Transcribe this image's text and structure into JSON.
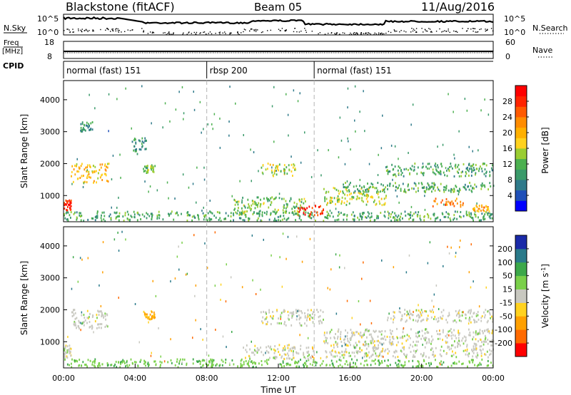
{
  "header": {
    "station": "Blackstone (fitACF)",
    "beam": "Beam 05",
    "date": "11/Aug/2016"
  },
  "top_panels": {
    "nsky_label": "N.Sky",
    "nsky_ticks": [
      "10^5",
      "10^0"
    ],
    "nsearch_label": "N.Search",
    "nsearch_ticks": [
      "10^5",
      "10^0"
    ],
    "freq_label": "Freq",
    "freq_unit": "[MHz]",
    "freq_ticks": [
      "18",
      "8"
    ],
    "nave_label": "Nave",
    "nave_ticks": [
      "60",
      "0"
    ],
    "cpid_label": "CPID",
    "cpid_segments": [
      {
        "label": "normal (fast) 151",
        "start_hour": 0,
        "end_hour": 8
      },
      {
        "label": "rbsp 200",
        "start_hour": 8,
        "end_hour": 14
      },
      {
        "label": "normal (fast) 151",
        "start_hour": 14,
        "end_hour": 24
      }
    ]
  },
  "x_axis": {
    "label": "Time UT",
    "ticks": [
      "00:00",
      "04:00",
      "08:00",
      "12:00",
      "16:00",
      "20:00",
      "00:00"
    ]
  },
  "y_axis": {
    "label": "Slant Range [km]",
    "ticks": [
      "1000",
      "2000",
      "3000",
      "4000"
    ]
  },
  "power_colorbar": {
    "label": "Power [dB]",
    "ticks": [
      "4",
      "8",
      "12",
      "16",
      "20",
      "24",
      "28"
    ],
    "colors": [
      "#0000ff",
      "#1f4fb8",
      "#2f7a8a",
      "#3a9a6a",
      "#4cb050",
      "#9acd32",
      "#ffd21f",
      "#ffb000",
      "#ff8c00",
      "#ff5a00",
      "#ff2400",
      "#ff0000"
    ]
  },
  "velocity_colorbar": {
    "label": "Velocity [m s^-1]",
    "ticks": [
      "200",
      "100",
      "50",
      "15",
      "-15",
      "-50",
      "-100",
      "-200"
    ],
    "colors": [
      "#1a2aa8",
      "#2a7a8a",
      "#3ca84a",
      "#7ad04a",
      "#c8c8c0",
      "#ffd21f",
      "#ffa000",
      "#ff6a00",
      "#ff0000"
    ]
  },
  "chart_data": {
    "type": "heatmap",
    "title": "Blackstone (fitACF) Beam 05 11/Aug/2016",
    "xlabel": "Time UT",
    "ylabel": "Slant Range [km]",
    "xlim": [
      0,
      24
    ],
    "ylim": [
      180,
      4600
    ],
    "cpid_change_hours": [
      8,
      14
    ],
    "power_features": [
      {
        "t_range": [
          0,
          0.4
        ],
        "r_range": [
          500,
          900
        ],
        "power_db": 28
      },
      {
        "t_range": [
          0.4,
          2.5
        ],
        "r_range": [
          1400,
          2000
        ],
        "power_db": 18
      },
      {
        "t_range": [
          0.9,
          1.6
        ],
        "r_range": [
          3000,
          3300
        ],
        "power_db": 8
      },
      {
        "t_range": [
          3.8,
          4.6
        ],
        "r_range": [
          2300,
          2800
        ],
        "power_db": 8
      },
      {
        "t_range": [
          4.4,
          5.1
        ],
        "r_range": [
          1700,
          1950
        ],
        "power_db": 12
      },
      {
        "t_range": [
          0,
          24
        ],
        "r_range": [
          200,
          500
        ],
        "power_db": 10
      },
      {
        "t_range": [
          9.5,
          13.5
        ],
        "r_range": [
          400,
          950
        ],
        "power_db": 12
      },
      {
        "t_range": [
          11,
          13
        ],
        "r_range": [
          1600,
          2000
        ],
        "power_db": 14
      },
      {
        "t_range": [
          13,
          14.5
        ],
        "r_range": [
          350,
          700
        ],
        "power_db": 28
      },
      {
        "t_range": [
          14.5,
          18
        ],
        "r_range": [
          700,
          1300
        ],
        "power_db": 14
      },
      {
        "t_range": [
          15.5,
          24
        ],
        "r_range": [
          1100,
          1400
        ],
        "power_db": 10
      },
      {
        "t_range": [
          18,
          24
        ],
        "r_range": [
          1600,
          2000
        ],
        "power_db": 10
      },
      {
        "t_range": [
          20.5,
          22.5
        ],
        "r_range": [
          650,
          900
        ],
        "power_db": 22
      },
      {
        "t_range": [
          22.8,
          23.8
        ],
        "r_range": [
          500,
          700
        ],
        "power_db": 20
      }
    ],
    "velocity_features": [
      {
        "t_range": [
          0,
          0.4
        ],
        "r_range": [
          500,
          900
        ],
        "velocity": 0
      },
      {
        "t_range": [
          0.4,
          2.5
        ],
        "r_range": [
          1400,
          2000
        ],
        "velocity": 0
      },
      {
        "t_range": [
          4.4,
          5.1
        ],
        "r_range": [
          1700,
          1950
        ],
        "velocity": -60
      },
      {
        "t_range": [
          0,
          24
        ],
        "r_range": [
          200,
          450
        ],
        "velocity": 40
      },
      {
        "t_range": [
          10,
          14
        ],
        "r_range": [
          450,
          900
        ],
        "velocity": 0
      },
      {
        "t_range": [
          11,
          14.5
        ],
        "r_range": [
          1500,
          2000
        ],
        "velocity": 0
      },
      {
        "t_range": [
          14.5,
          24
        ],
        "r_range": [
          500,
          1400
        ],
        "velocity": 0
      },
      {
        "t_range": [
          18,
          24
        ],
        "r_range": [
          1600,
          2000
        ],
        "velocity": 0
      }
    ]
  }
}
